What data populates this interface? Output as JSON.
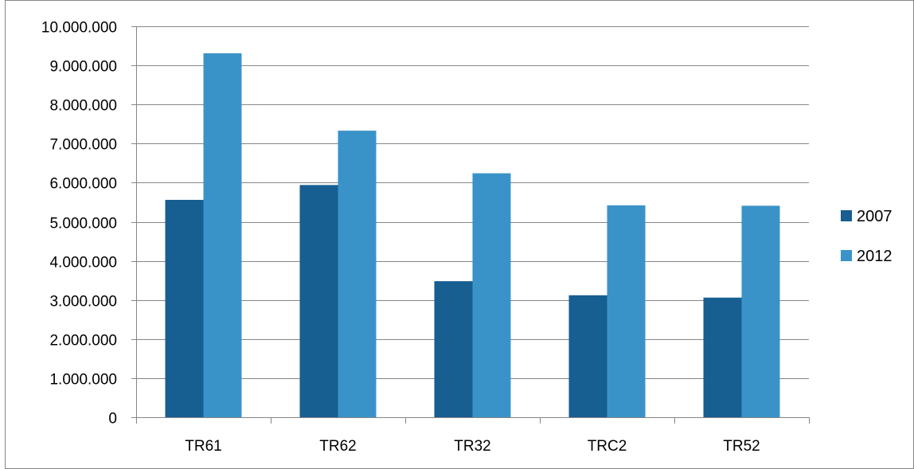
{
  "chart_data": {
    "type": "bar",
    "categories": [
      "TR61",
      "TR62",
      "TR32",
      "TRC2",
      "TR52"
    ],
    "series": [
      {
        "name": "2007",
        "color": "#175E91",
        "values": [
          5560000,
          5940000,
          3480000,
          3120000,
          3060000
        ]
      },
      {
        "name": "2012",
        "color": "#3A93C8",
        "values": [
          9310000,
          7330000,
          6240000,
          5420000,
          5410000
        ]
      }
    ],
    "title": "",
    "xlabel": "",
    "ylabel": "",
    "ylim": [
      0,
      10000000
    ],
    "yticks": [
      {
        "value": 0,
        "label": "0"
      },
      {
        "value": 1000000,
        "label": "1.000.000"
      },
      {
        "value": 2000000,
        "label": "2.000.000"
      },
      {
        "value": 3000000,
        "label": "3.000.000"
      },
      {
        "value": 4000000,
        "label": "4.000.000"
      },
      {
        "value": 5000000,
        "label": "5.000.000"
      },
      {
        "value": 6000000,
        "label": "6.000.000"
      },
      {
        "value": 7000000,
        "label": "7.000.000"
      },
      {
        "value": 8000000,
        "label": "8.000.000"
      },
      {
        "value": 9000000,
        "label": "9.000.000"
      },
      {
        "value": 10000000,
        "label": "10.000.000"
      }
    ],
    "grid": true,
    "legend": "right"
  }
}
